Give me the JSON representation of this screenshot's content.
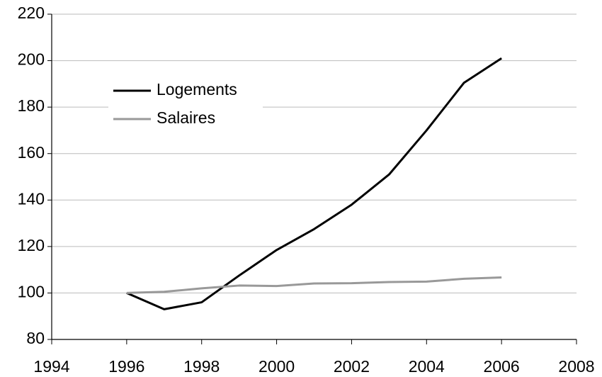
{
  "chart_data": {
    "type": "line",
    "x": [
      1996,
      1997,
      1998,
      1999,
      2000,
      2001,
      2002,
      2003,
      2004,
      2005,
      2006
    ],
    "series": [
      {
        "name": "Logements",
        "color": "#000000",
        "values": [
          100,
          93,
          96,
          107.5,
          118.5,
          127.5,
          138,
          151,
          170,
          190.5,
          201
        ]
      },
      {
        "name": "Salaires",
        "color": "#999999",
        "values": [
          100,
          100.5,
          102,
          103.2,
          103,
          104.1,
          104.2,
          104.7,
          104.9,
          106.1,
          106.7
        ]
      }
    ],
    "xlim": [
      1994,
      2008
    ],
    "xticks": [
      1994,
      1996,
      1998,
      2000,
      2002,
      2004,
      2006,
      2008
    ],
    "ylim": [
      80,
      220
    ],
    "yticks": [
      80,
      100,
      120,
      140,
      160,
      180,
      200,
      220
    ],
    "grid": true,
    "legend": "upper left"
  }
}
